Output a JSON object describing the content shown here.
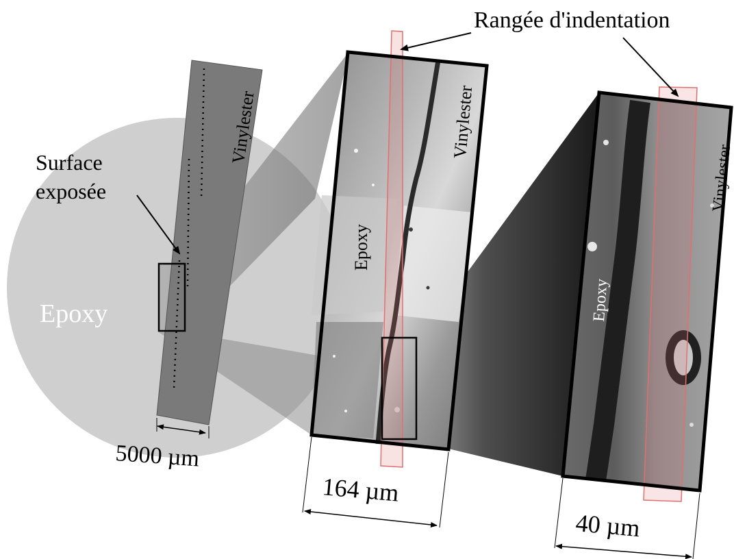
{
  "labels": {
    "indentation_row": "Rangée d'indentation",
    "exposed_surface_line1": "Surface",
    "exposed_surface_line2": "exposée",
    "epoxy_main": "Epoxy",
    "vinylester_main": "Vinylester",
    "epoxy_mid": "Epoxy",
    "vinylester_mid": "Vinylester",
    "epoxy_right": "Epoxy",
    "vinylester_right": "Vinylester"
  },
  "scale_bars": {
    "overview": "5000 µm",
    "middle": "164 µm",
    "right": "40 µm"
  },
  "colors": {
    "disc": "#cfcfcf",
    "sample_strip": "#7a7a7a",
    "indent_highlight": "#e07070",
    "frame": "#000000"
  }
}
